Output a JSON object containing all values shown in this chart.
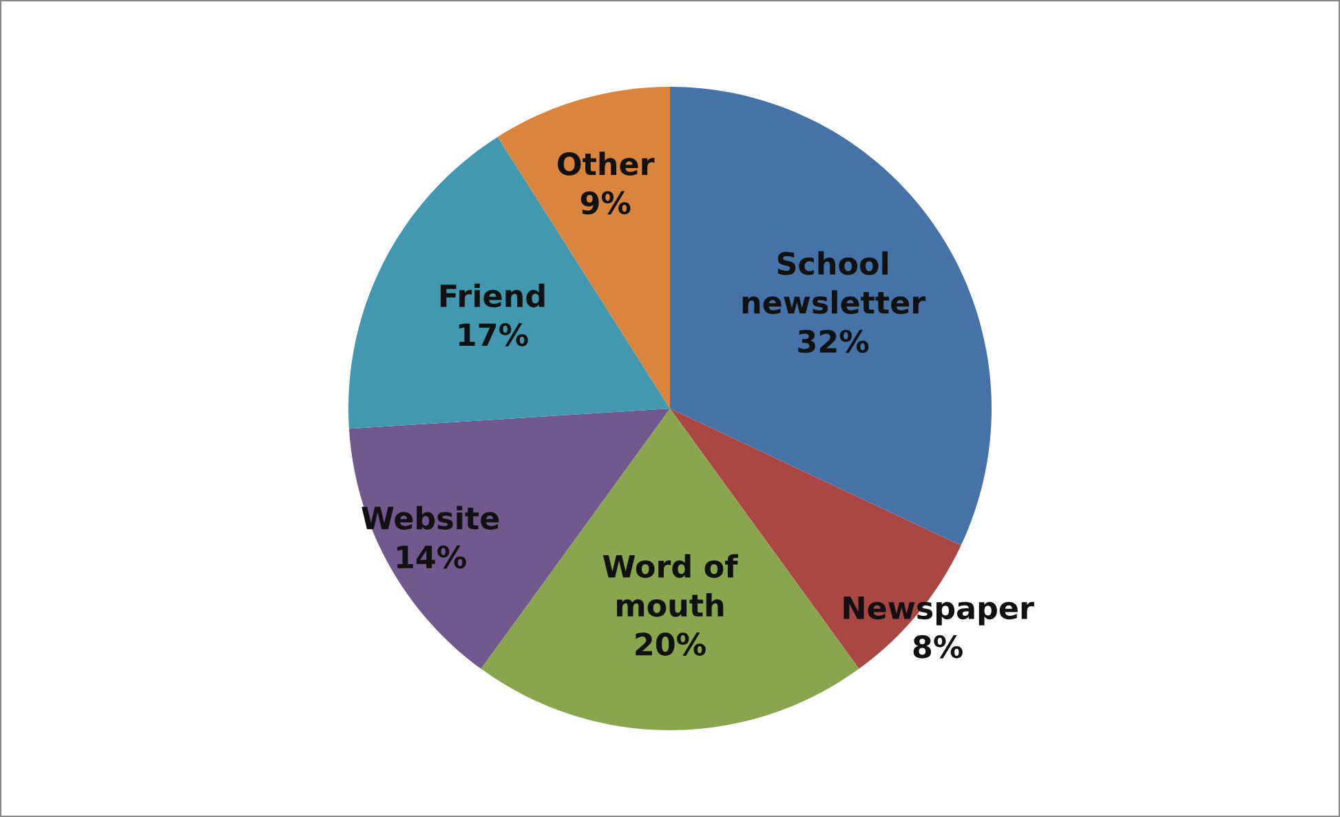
{
  "chart_data": {
    "type": "pie",
    "categories": [
      "School\nnewsletter",
      "Newspaper",
      "Word of\nmouth",
      "Website",
      "Friend",
      "Other"
    ],
    "values": [
      32,
      8,
      20,
      14,
      17,
      9
    ],
    "colors": [
      "#4572a7",
      "#aa4643",
      "#89a54e",
      "#71588f",
      "#4198af",
      "#db843d"
    ],
    "value_labels": [
      "32%",
      "8%",
      "20%",
      "14%",
      "17%",
      "9%"
    ],
    "legend": false
  }
}
